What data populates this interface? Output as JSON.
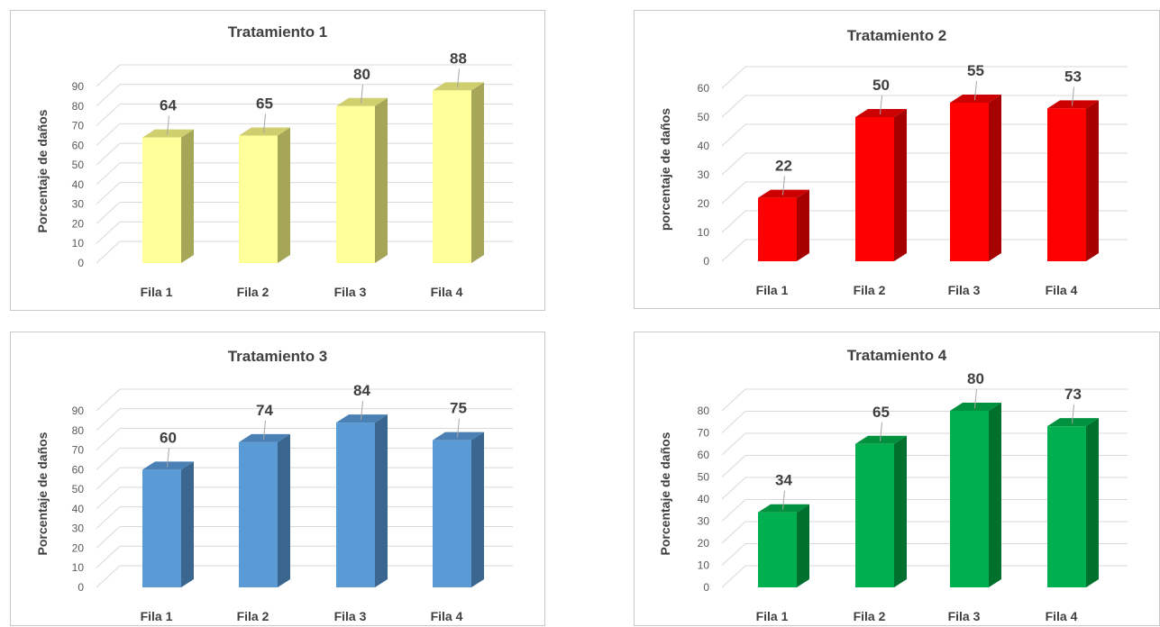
{
  "chart_data": [
    {
      "type": "bar",
      "title": "Tratamiento 1",
      "ylabel": "Porcentaje de daños",
      "xlabel": "",
      "categories": [
        "Fila 1",
        "Fila 2",
        "Fila 3",
        "Fila 4"
      ],
      "values": [
        64,
        65,
        80,
        88
      ],
      "ylim": [
        0,
        90
      ],
      "yticks": [
        0,
        10,
        20,
        30,
        40,
        50,
        60,
        70,
        80,
        90
      ],
      "grid": true,
      "style": "3d-column",
      "colors": {
        "front": "#FFFF99",
        "side": "#A6A659",
        "top": "#CFCF70"
      }
    },
    {
      "type": "bar",
      "title": "Tratamiento 2",
      "ylabel": "porcentaje de daños",
      "xlabel": "",
      "categories": [
        "Fila 1",
        "Fila 2",
        "Fila 3",
        "Fila 4"
      ],
      "values": [
        22,
        50,
        55,
        53
      ],
      "ylim": [
        0,
        60
      ],
      "yticks": [
        0,
        10,
        20,
        30,
        40,
        50,
        60
      ],
      "grid": true,
      "style": "3d-column",
      "colors": {
        "front": "#FF0000",
        "side": "#A60000",
        "top": "#CC0000"
      }
    },
    {
      "type": "bar",
      "title": "Tratamiento 3",
      "ylabel": "Porcentaje de daños",
      "xlabel": "",
      "categories": [
        "Fila 1",
        "Fila 2",
        "Fila 3",
        "Fila 4"
      ],
      "values": [
        60,
        74,
        84,
        75
      ],
      "ylim": [
        0,
        90
      ],
      "yticks": [
        0,
        10,
        20,
        30,
        40,
        50,
        60,
        70,
        80,
        90
      ],
      "grid": true,
      "style": "3d-column",
      "colors": {
        "front": "#5B9BD5",
        "side": "#3A6690",
        "top": "#4A80B4"
      }
    },
    {
      "type": "bar",
      "title": "Tratamiento 4",
      "ylabel": "Porcentaje de daños",
      "xlabel": "",
      "categories": [
        "Fila 1",
        "Fila 2",
        "Fila 3",
        "Fila 4"
      ],
      "values": [
        34,
        65,
        80,
        73
      ],
      "ylim": [
        0,
        80
      ],
      "yticks": [
        0,
        10,
        20,
        30,
        40,
        50,
        60,
        70,
        80
      ],
      "grid": true,
      "style": "3d-column",
      "colors": {
        "front": "#00B050",
        "side": "#00702F",
        "top": "#00913F"
      }
    }
  ]
}
